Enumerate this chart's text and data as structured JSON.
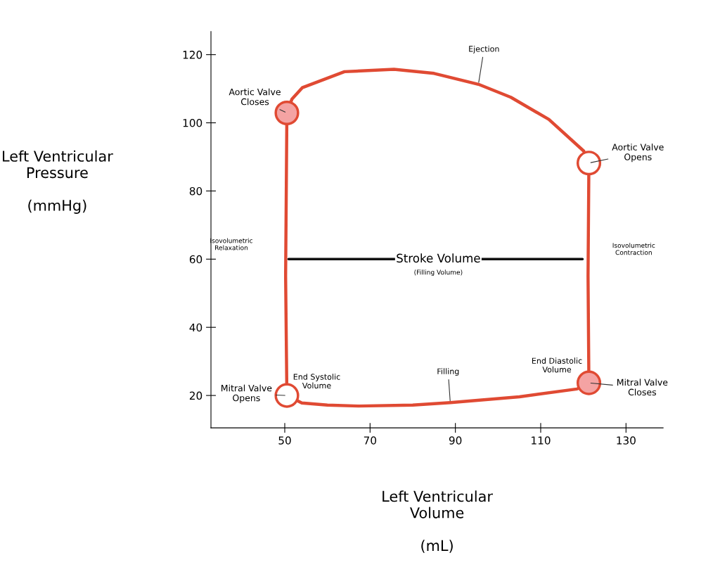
{
  "chart_data": {
    "type": "line",
    "xlabel": "Left Ventricular\nVolume\n\n(mL)",
    "ylabel": "Left Ventricular\nPressure\n\n(mmHg)",
    "xlim": [
      32.7,
      138.7
    ],
    "ylim": [
      10.5,
      126.8
    ],
    "xticks": [
      50,
      70,
      90,
      110,
      130
    ],
    "yticks": [
      20,
      40,
      60,
      80,
      100,
      120
    ],
    "grid": false,
    "legend": false,
    "series": [
      {
        "color": "#e04a33",
        "marker": "none",
        "x": [
          50.5,
          54,
          60,
          67.3,
          80,
          88.8,
          105,
          118.5,
          121.3
        ],
        "values": [
          20,
          17.8,
          17.2,
          16.9,
          17.2,
          17.9,
          19.6,
          21.9,
          23.7
        ]
      },
      {
        "color": "#e04a33",
        "marker": "none",
        "x": [
          121.3,
          121.1,
          121.3
        ],
        "values": [
          23.7,
          55,
          88.2
        ]
      },
      {
        "color": "#e04a33",
        "marker": "none",
        "x": [
          121.3,
          120.1,
          111.9,
          103,
          95.4,
          85,
          75.6,
          64,
          54.1,
          51.7,
          50.5
        ],
        "values": [
          88.2,
          91.7,
          101,
          107.5,
          111.3,
          114.5,
          115.7,
          115,
          110.3,
          107,
          102.9
        ]
      },
      {
        "color": "#e04a33",
        "marker": "none",
        "x": [
          50.5,
          50.2,
          50.5
        ],
        "values": [
          102.9,
          55,
          20
        ]
      },
      {
        "color": "#111111",
        "marker": "none",
        "x": [
          50.9,
          119.8
        ],
        "values": [
          60,
          60
        ]
      },
      {
        "type": "scatter",
        "color": "#e04a33",
        "marker": "circle",
        "x": [
          50.5,
          50.5,
          121.3,
          121.3
        ],
        "values": [
          102.9,
          20,
          23.7,
          88.2
        ],
        "colors": [
          "#f4a3a3",
          "#ffffff",
          "#f4a3a3",
          "#ffffff"
        ]
      }
    ],
    "annotations": [
      {
        "text": "Ejection",
        "x": 95.4,
        "y": 111.3
      },
      {
        "text": "Aortic Valve\nCloses",
        "x": 50.5,
        "y": 102.9
      },
      {
        "text": "Aortic Valve\nOpens",
        "x": 121.3,
        "y": 88.2
      },
      "Isovolumetric\nRelaxation",
      "Isovolumetric\nContraction",
      {
        "text": "Stroke Volume",
        "x": 86,
        "y": 60
      },
      {
        "text": "(Filling Volume)",
        "x": 86,
        "y": 60
      },
      {
        "text": "Mitral Valve\nOpens",
        "x": 50.5,
        "y": 20
      },
      {
        "text": "End Systolic\nVolume",
        "x": 50.5,
        "y": 20
      },
      {
        "text": "Filling",
        "x": 88.8,
        "y": 17.9
      },
      {
        "text": "End Diastolic\nVolume",
        "x": 121.3,
        "y": 23.7
      },
      {
        "text": "Mitral Valve\nCloses",
        "x": 121.3,
        "y": 23.7
      }
    ]
  }
}
